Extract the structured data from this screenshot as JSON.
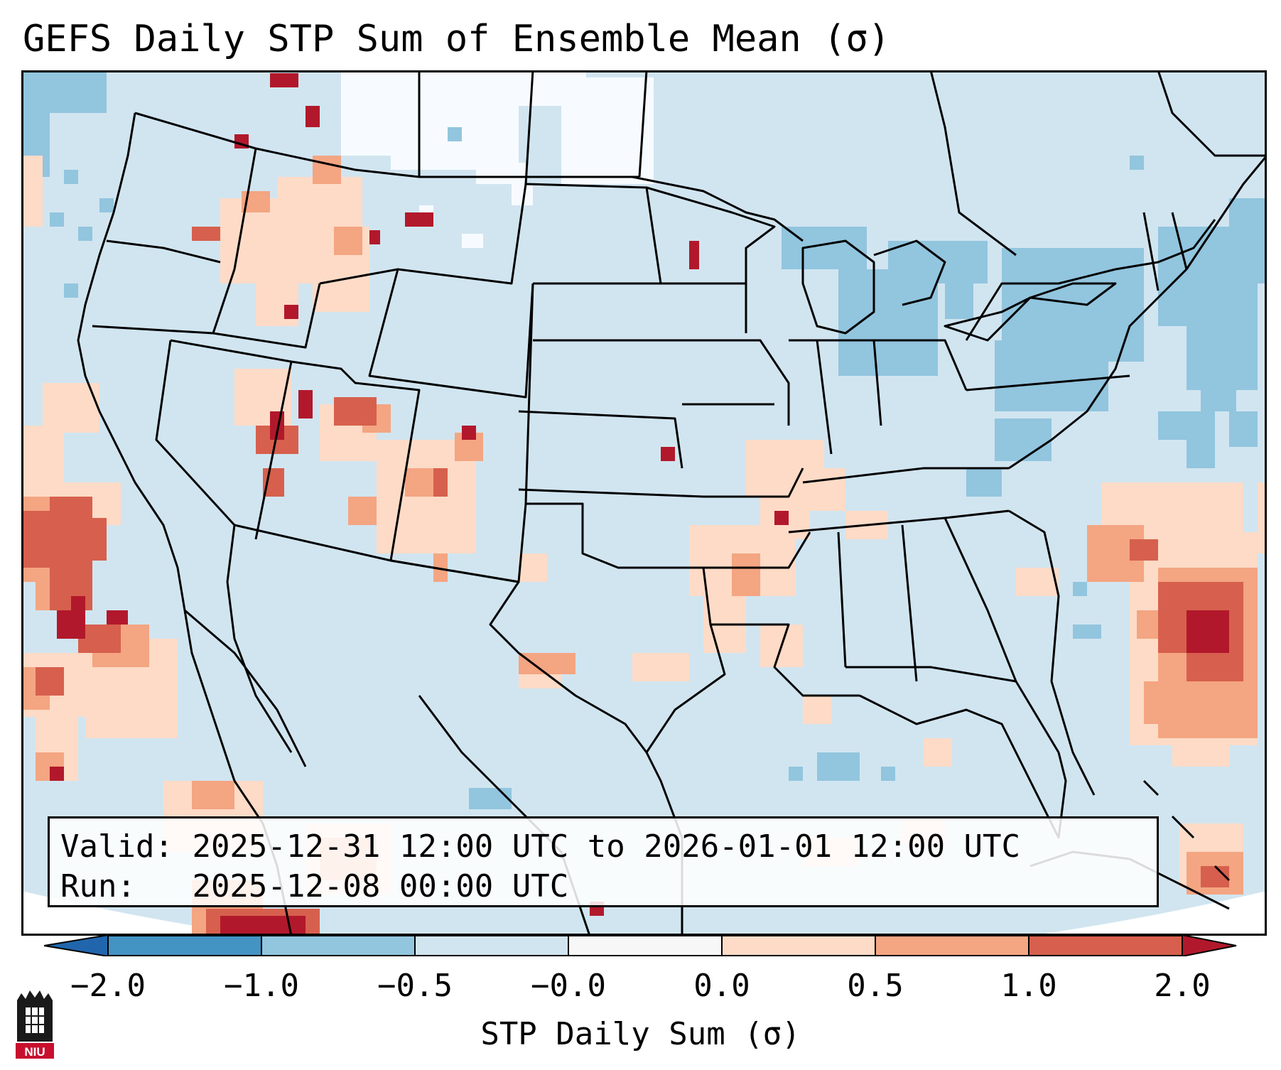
{
  "header": {
    "title": "GEFS Daily STP Sum of Ensemble Mean (σ)"
  },
  "valid_box": {
    "valid_label": "Valid:",
    "valid_value": "2025-12-31 12:00 UTC to 2026-01-01 12:00 UTC",
    "run_label": "Run:",
    "run_value": "2025-12-08 00:00 UTC"
  },
  "colorbar": {
    "label": "STP Daily Sum (σ)",
    "ticks": [
      "−2.0",
      "−1.0",
      "−0.5",
      "−0.0",
      "0.0",
      "0.5",
      "1.0",
      "2.0"
    ],
    "colors": [
      "#2166ac",
      "#4393c3",
      "#92c5de",
      "#d1e5f0",
      "#f7f7f7",
      "#fddbc7",
      "#f4a582",
      "#d6604d",
      "#b2182b"
    ],
    "extend": "both"
  },
  "map_legend": {
    "background_color": "#d1e5f0",
    "region": "Continental United States"
  },
  "logo": {
    "text": "NIU"
  }
}
